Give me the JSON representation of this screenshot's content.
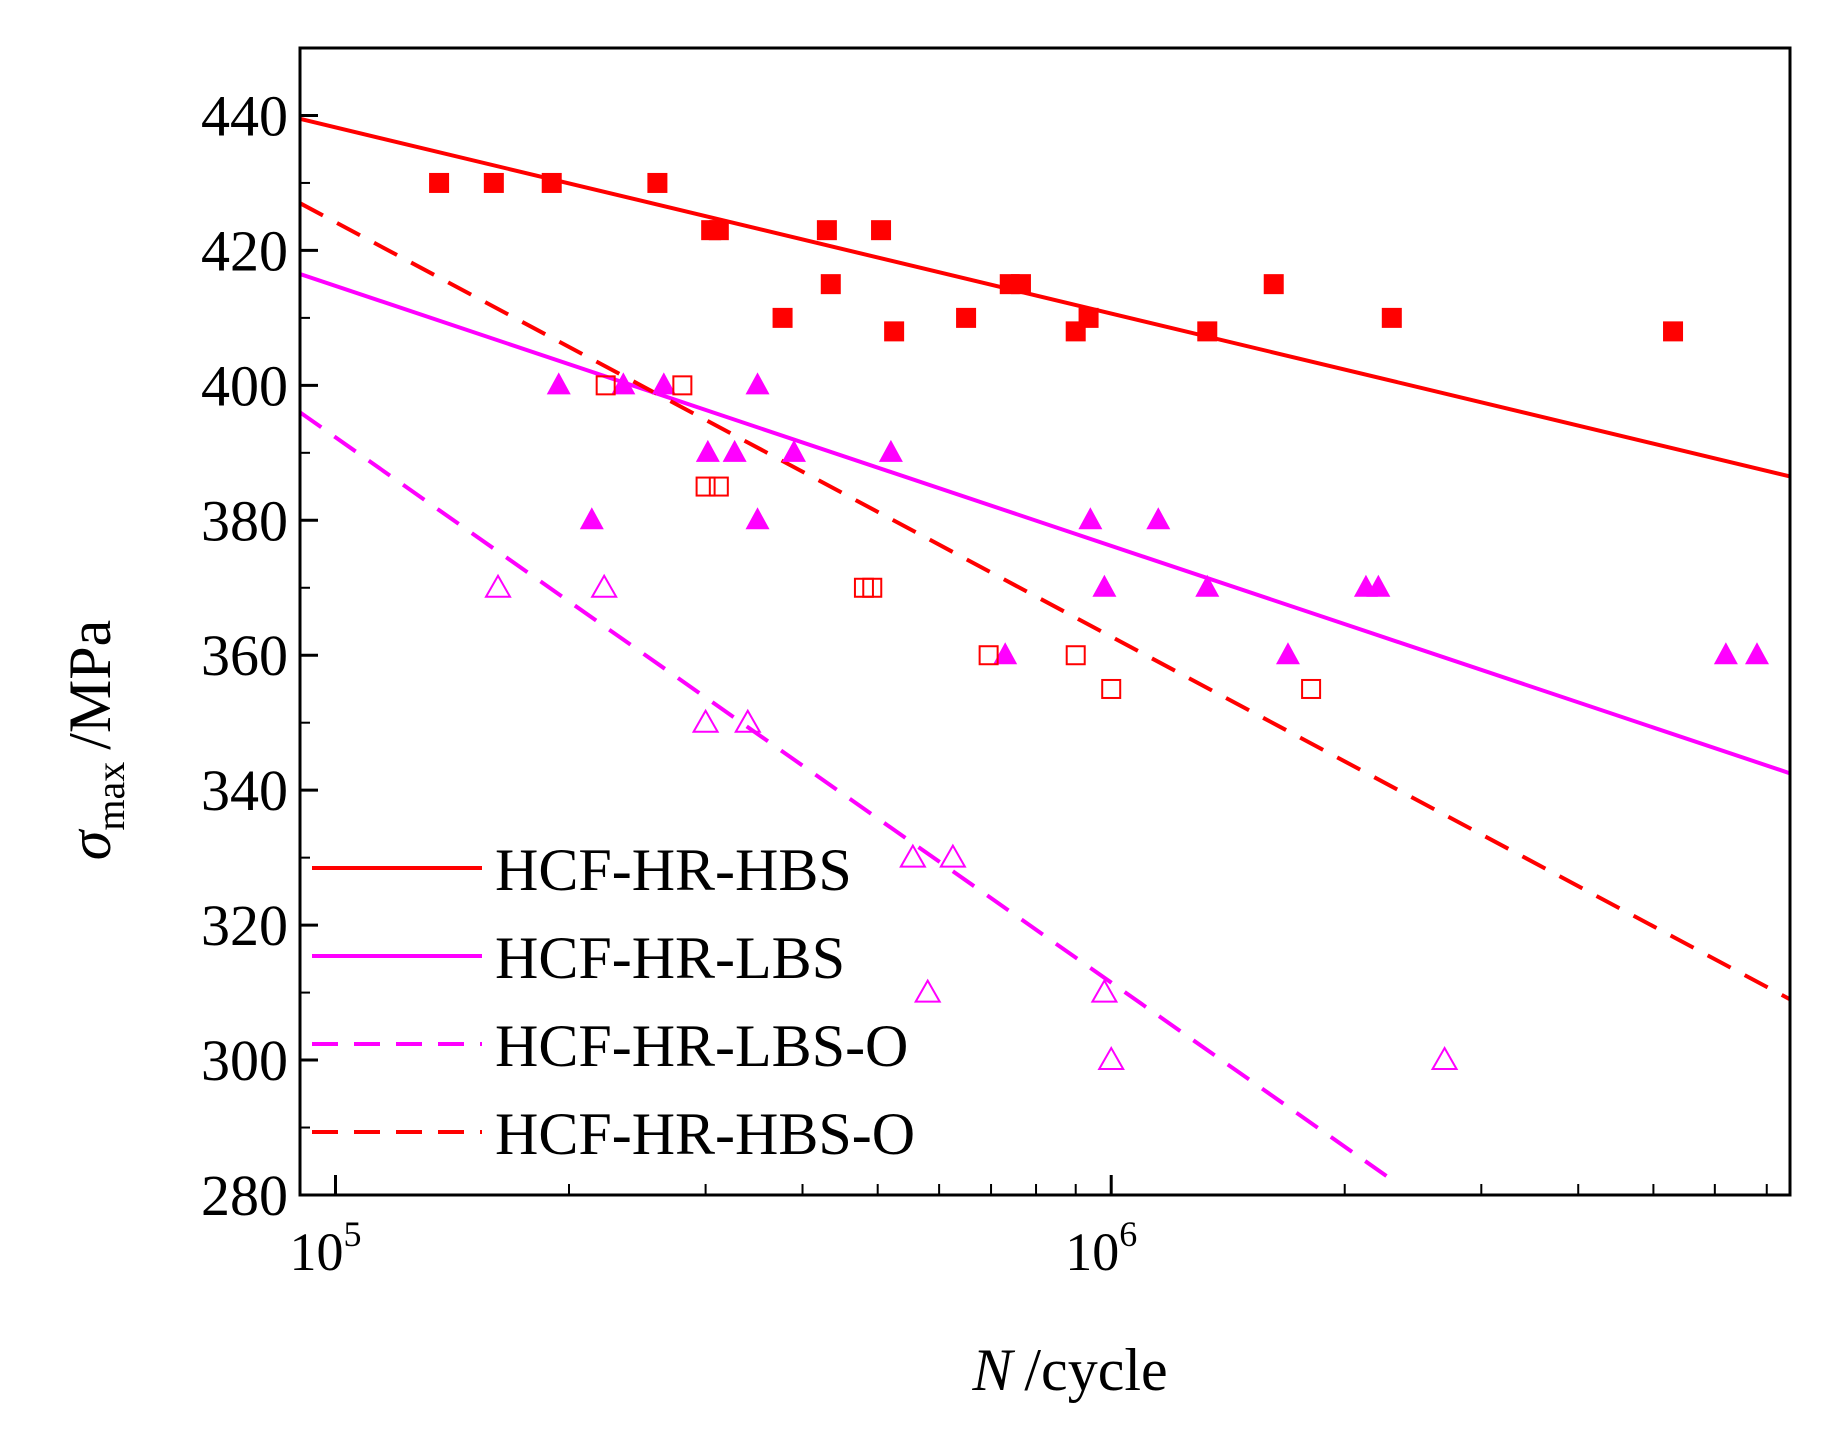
{
  "chart_data": {
    "type": "scatter",
    "title": "",
    "xlabel": {
      "var": "N",
      "unit": "/cycle"
    },
    "ylabel": {
      "var": "σ",
      "sub": "max",
      "unit": "/MPa"
    },
    "x_scale": "log",
    "xlim": [
      90000,
      7500000
    ],
    "ylim": [
      280,
      450
    ],
    "y_ticks": [
      280,
      300,
      320,
      340,
      360,
      380,
      400,
      420,
      440
    ],
    "x_major_ticks": [
      {
        "value": 100000,
        "base": "10",
        "exp": "5"
      },
      {
        "value": 1000000,
        "base": "10",
        "exp": "6"
      }
    ],
    "x_minor_ticks": [
      200000,
      300000,
      400000,
      500000,
      600000,
      700000,
      800000,
      900000,
      2000000,
      3000000,
      4000000,
      5000000,
      6000000,
      7000000
    ],
    "legend_position": "bottom-left",
    "colors": {
      "red": "#ff0000",
      "magenta": "#ff00ff"
    },
    "series": [
      {
        "name": "HCF-HR-HBS",
        "color": "#ff0000",
        "marker": "filled-square",
        "line": "solid",
        "fit": [
          [
            90000,
            439.5
          ],
          [
            7500000,
            386.5
          ]
        ],
        "points": [
          [
            136000,
            430
          ],
          [
            160000,
            430
          ],
          [
            190000,
            430
          ],
          [
            260000,
            430
          ],
          [
            305000,
            423
          ],
          [
            312000,
            423
          ],
          [
            430000,
            423
          ],
          [
            505000,
            423
          ],
          [
            377000,
            410
          ],
          [
            435000,
            415
          ],
          [
            525000,
            408
          ],
          [
            650000,
            410
          ],
          [
            740000,
            415
          ],
          [
            765000,
            415
          ],
          [
            900000,
            408
          ],
          [
            935000,
            410
          ],
          [
            1330000,
            408
          ],
          [
            1620000,
            415
          ],
          [
            2300000,
            410
          ],
          [
            5300000,
            408
          ]
        ]
      },
      {
        "name": "HCF-HR-LBS",
        "color": "#ff00ff",
        "marker": "filled-triangle",
        "line": "solid",
        "fit": [
          [
            90000,
            416.5
          ],
          [
            7500000,
            342.5
          ]
        ],
        "points": [
          [
            194000,
            400
          ],
          [
            235000,
            400
          ],
          [
            265000,
            400
          ],
          [
            350000,
            400
          ],
          [
            214000,
            380
          ],
          [
            302000,
            390
          ],
          [
            327000,
            390
          ],
          [
            390000,
            390
          ],
          [
            520000,
            390
          ],
          [
            350000,
            380
          ],
          [
            730000,
            360
          ],
          [
            940000,
            380
          ],
          [
            980000,
            370
          ],
          [
            1150000,
            380
          ],
          [
            1330000,
            370
          ],
          [
            1690000,
            360
          ],
          [
            2130000,
            370
          ],
          [
            2210000,
            370
          ],
          [
            6200000,
            360
          ],
          [
            6800000,
            360
          ]
        ]
      },
      {
        "name": "HCF-HR-LBS-O",
        "color": "#ff00ff",
        "marker": "open-triangle",
        "line": "dashed",
        "fit": [
          [
            90000,
            396
          ],
          [
            2350000,
            281.5
          ]
        ],
        "points": [
          [
            162000,
            370
          ],
          [
            222000,
            370
          ],
          [
            300000,
            350
          ],
          [
            340000,
            350
          ],
          [
            555000,
            330
          ],
          [
            625000,
            330
          ],
          [
            580000,
            310
          ],
          [
            980000,
            310
          ],
          [
            1000000,
            300
          ],
          [
            2690000,
            300
          ]
        ]
      },
      {
        "name": "HCF-HR-HBS-O",
        "color": "#ff0000",
        "marker": "open-square",
        "line": "dashed",
        "fit": [
          [
            90000,
            427
          ],
          [
            7500000,
            309
          ]
        ],
        "points": [
          [
            223000,
            400
          ],
          [
            280000,
            400
          ],
          [
            300000,
            385
          ],
          [
            312000,
            385
          ],
          [
            480000,
            370
          ],
          [
            492000,
            370
          ],
          [
            695000,
            360
          ],
          [
            900000,
            360
          ],
          [
            1000000,
            355
          ],
          [
            1810000,
            355
          ]
        ]
      }
    ]
  }
}
